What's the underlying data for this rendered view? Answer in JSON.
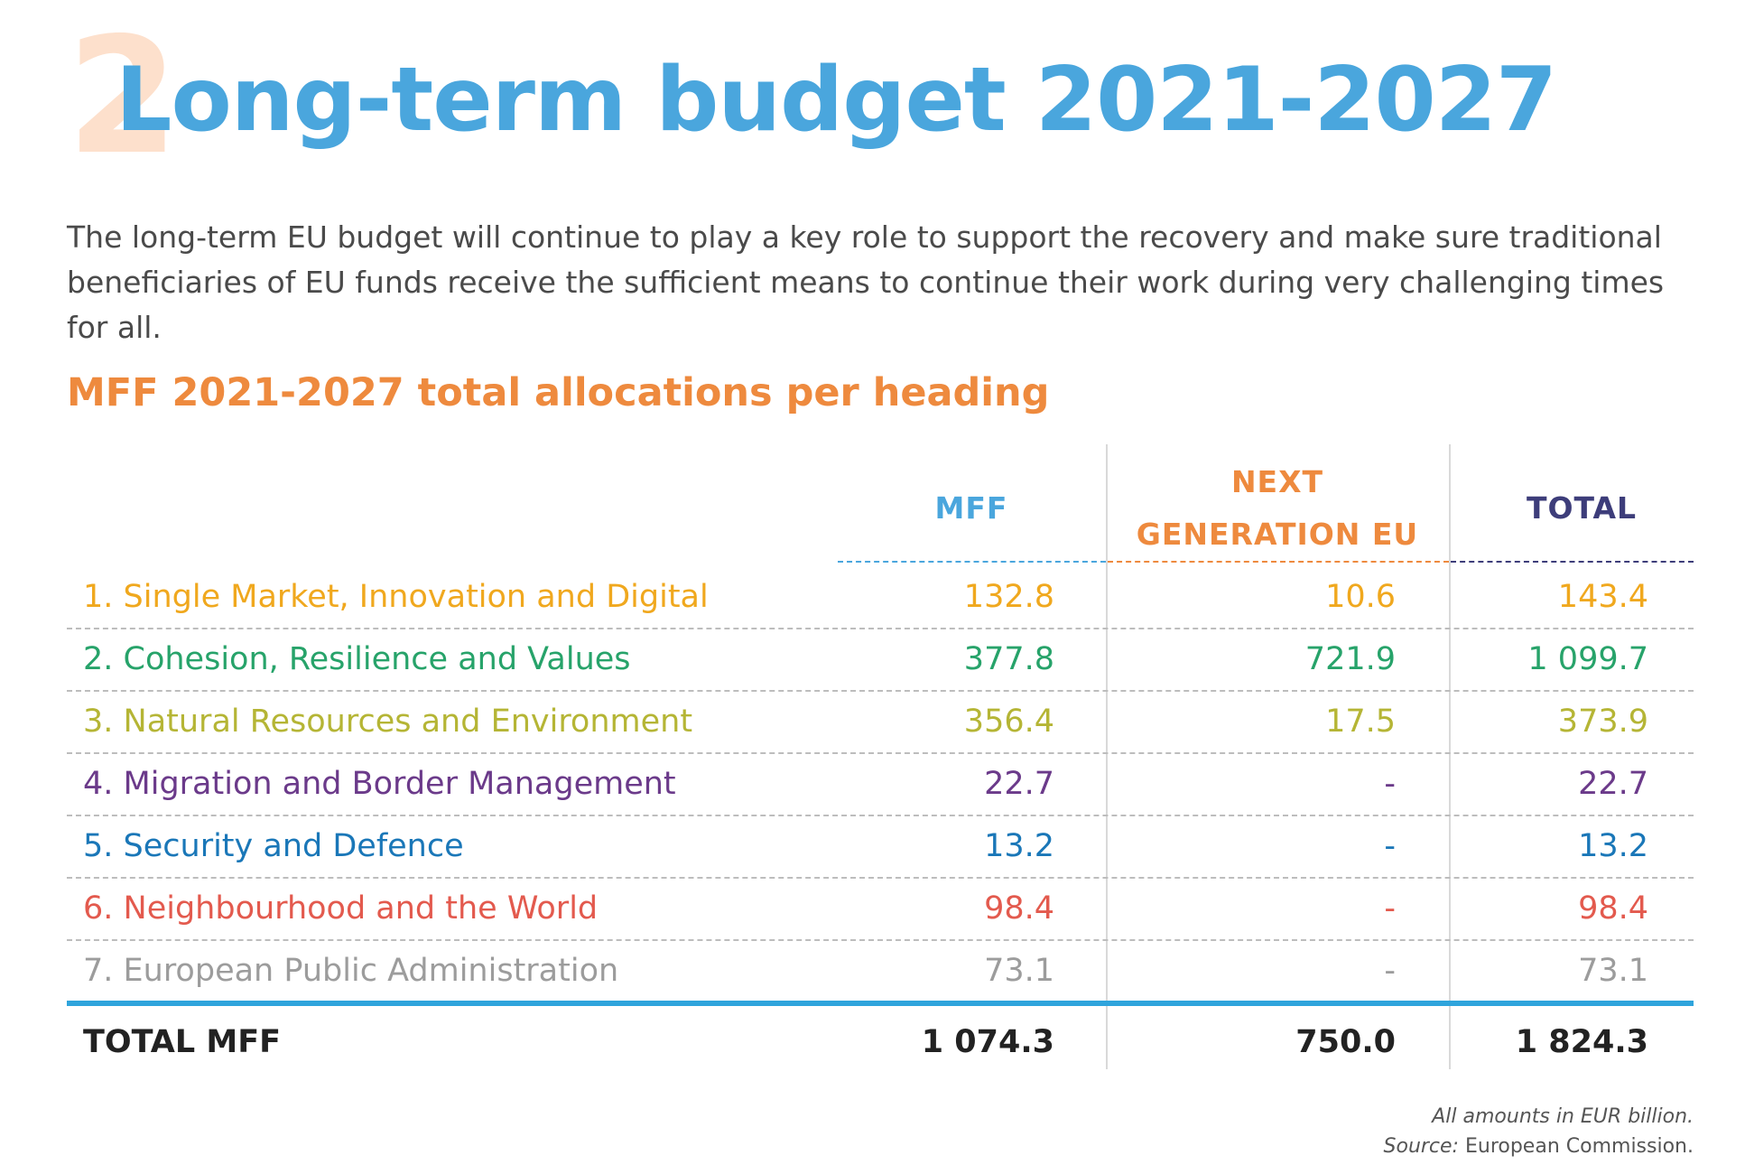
{
  "header": {
    "section_number": "2",
    "title": "Long-term budget 2021-2027",
    "intro": "The long-term EU budget will continue to play a key role to support the recovery and make sure traditional beneficiaries of EU funds receive the sufficient means to continue their work during very challenging times for all.",
    "subtitle": "MFF 2021-2027 total allocations per heading"
  },
  "table": {
    "columns": [
      {
        "label": "MFF",
        "color": "#4aa6dd"
      },
      {
        "label_line1": "NEXT",
        "label_line2": "GENERATION EU",
        "color": "#ee8a3e"
      },
      {
        "label": "TOTAL",
        "color": "#3d3d7a"
      }
    ],
    "rows": [
      {
        "label": "1. Single Market, Innovation and Digital",
        "mff": "132.8",
        "ngeu": "10.6",
        "total": "143.4",
        "color": "#f0a81e"
      },
      {
        "label": "2. Cohesion, Resilience and Values",
        "mff": "377.8",
        "ngeu": "721.9",
        "total": "1 099.7",
        "color": "#27a36a"
      },
      {
        "label": "3. Natural Resources and Environment",
        "mff": "356.4",
        "ngeu": "17.5",
        "total": "373.9",
        "color": "#b5b535"
      },
      {
        "label": "4. Migration and Border Management",
        "mff": "22.7",
        "ngeu": "-",
        "total": "22.7",
        "color": "#6b3a8a"
      },
      {
        "label": "5. Security and Defence",
        "mff": "13.2",
        "ngeu": "-",
        "total": "13.2",
        "color": "#1a77b8"
      },
      {
        "label": "6. Neighbourhood and the World",
        "mff": "98.4",
        "ngeu": "-",
        "total": "98.4",
        "color": "#e35a4e"
      },
      {
        "label": "7. European Public Administration",
        "mff": "73.1",
        "ngeu": "-",
        "total": "73.1",
        "color": "#9c9c9c"
      }
    ],
    "total": {
      "label": "TOTAL MFF",
      "mff": "1 074.3",
      "ngeu": "750.0",
      "total": "1 824.3"
    }
  },
  "footnote": {
    "amounts": "All amounts in EUR billion.",
    "source_label": "Source:",
    "source_value": " European Commission."
  }
}
